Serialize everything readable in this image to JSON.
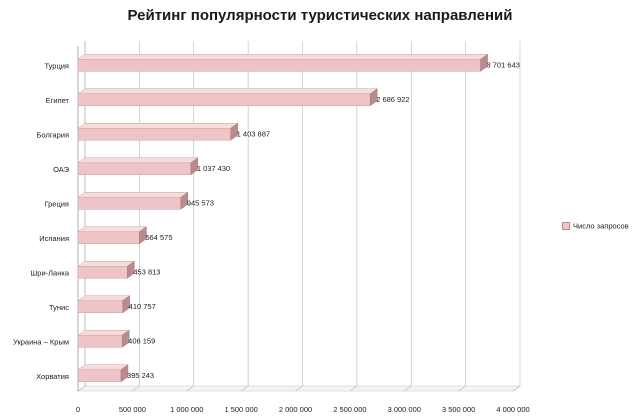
{
  "chart_data": {
    "type": "bar",
    "orientation": "horizontal",
    "title": "Рейтинг популярности туристических направлений",
    "categories": [
      "Турция",
      "Египет",
      "Болгария",
      "ОАЭ",
      "Греция",
      "Испания",
      "Шри-Ланка",
      "Тунис",
      "Украина – Крым",
      "Хорватия"
    ],
    "values": [
      3701643,
      2686922,
      1403887,
      1037430,
      945573,
      564575,
      453813,
      410757,
      406159,
      395243
    ],
    "value_labels": [
      "3 701 643",
      "2 686 922",
      "1 403 887",
      "1 037 430",
      "945 573",
      "564 575",
      "453 813",
      "410 757",
      "406 159",
      "395 243"
    ],
    "series": [
      {
        "name": "Число запросов"
      }
    ],
    "xlim": [
      0,
      4000000
    ],
    "x_ticks": [
      "0",
      "500 000",
      "1 000 000",
      "1 500 000",
      "2 000 000",
      "2 500 000",
      "3 000 000",
      "3 500 000",
      "4 000 000"
    ],
    "grid": true,
    "legend": "right",
    "colors": {
      "bar_front": "#efc4c6",
      "bar_top": "#f7dcdd",
      "bar_side": "#b98b8e",
      "grid": "#b8b8b8"
    }
  }
}
